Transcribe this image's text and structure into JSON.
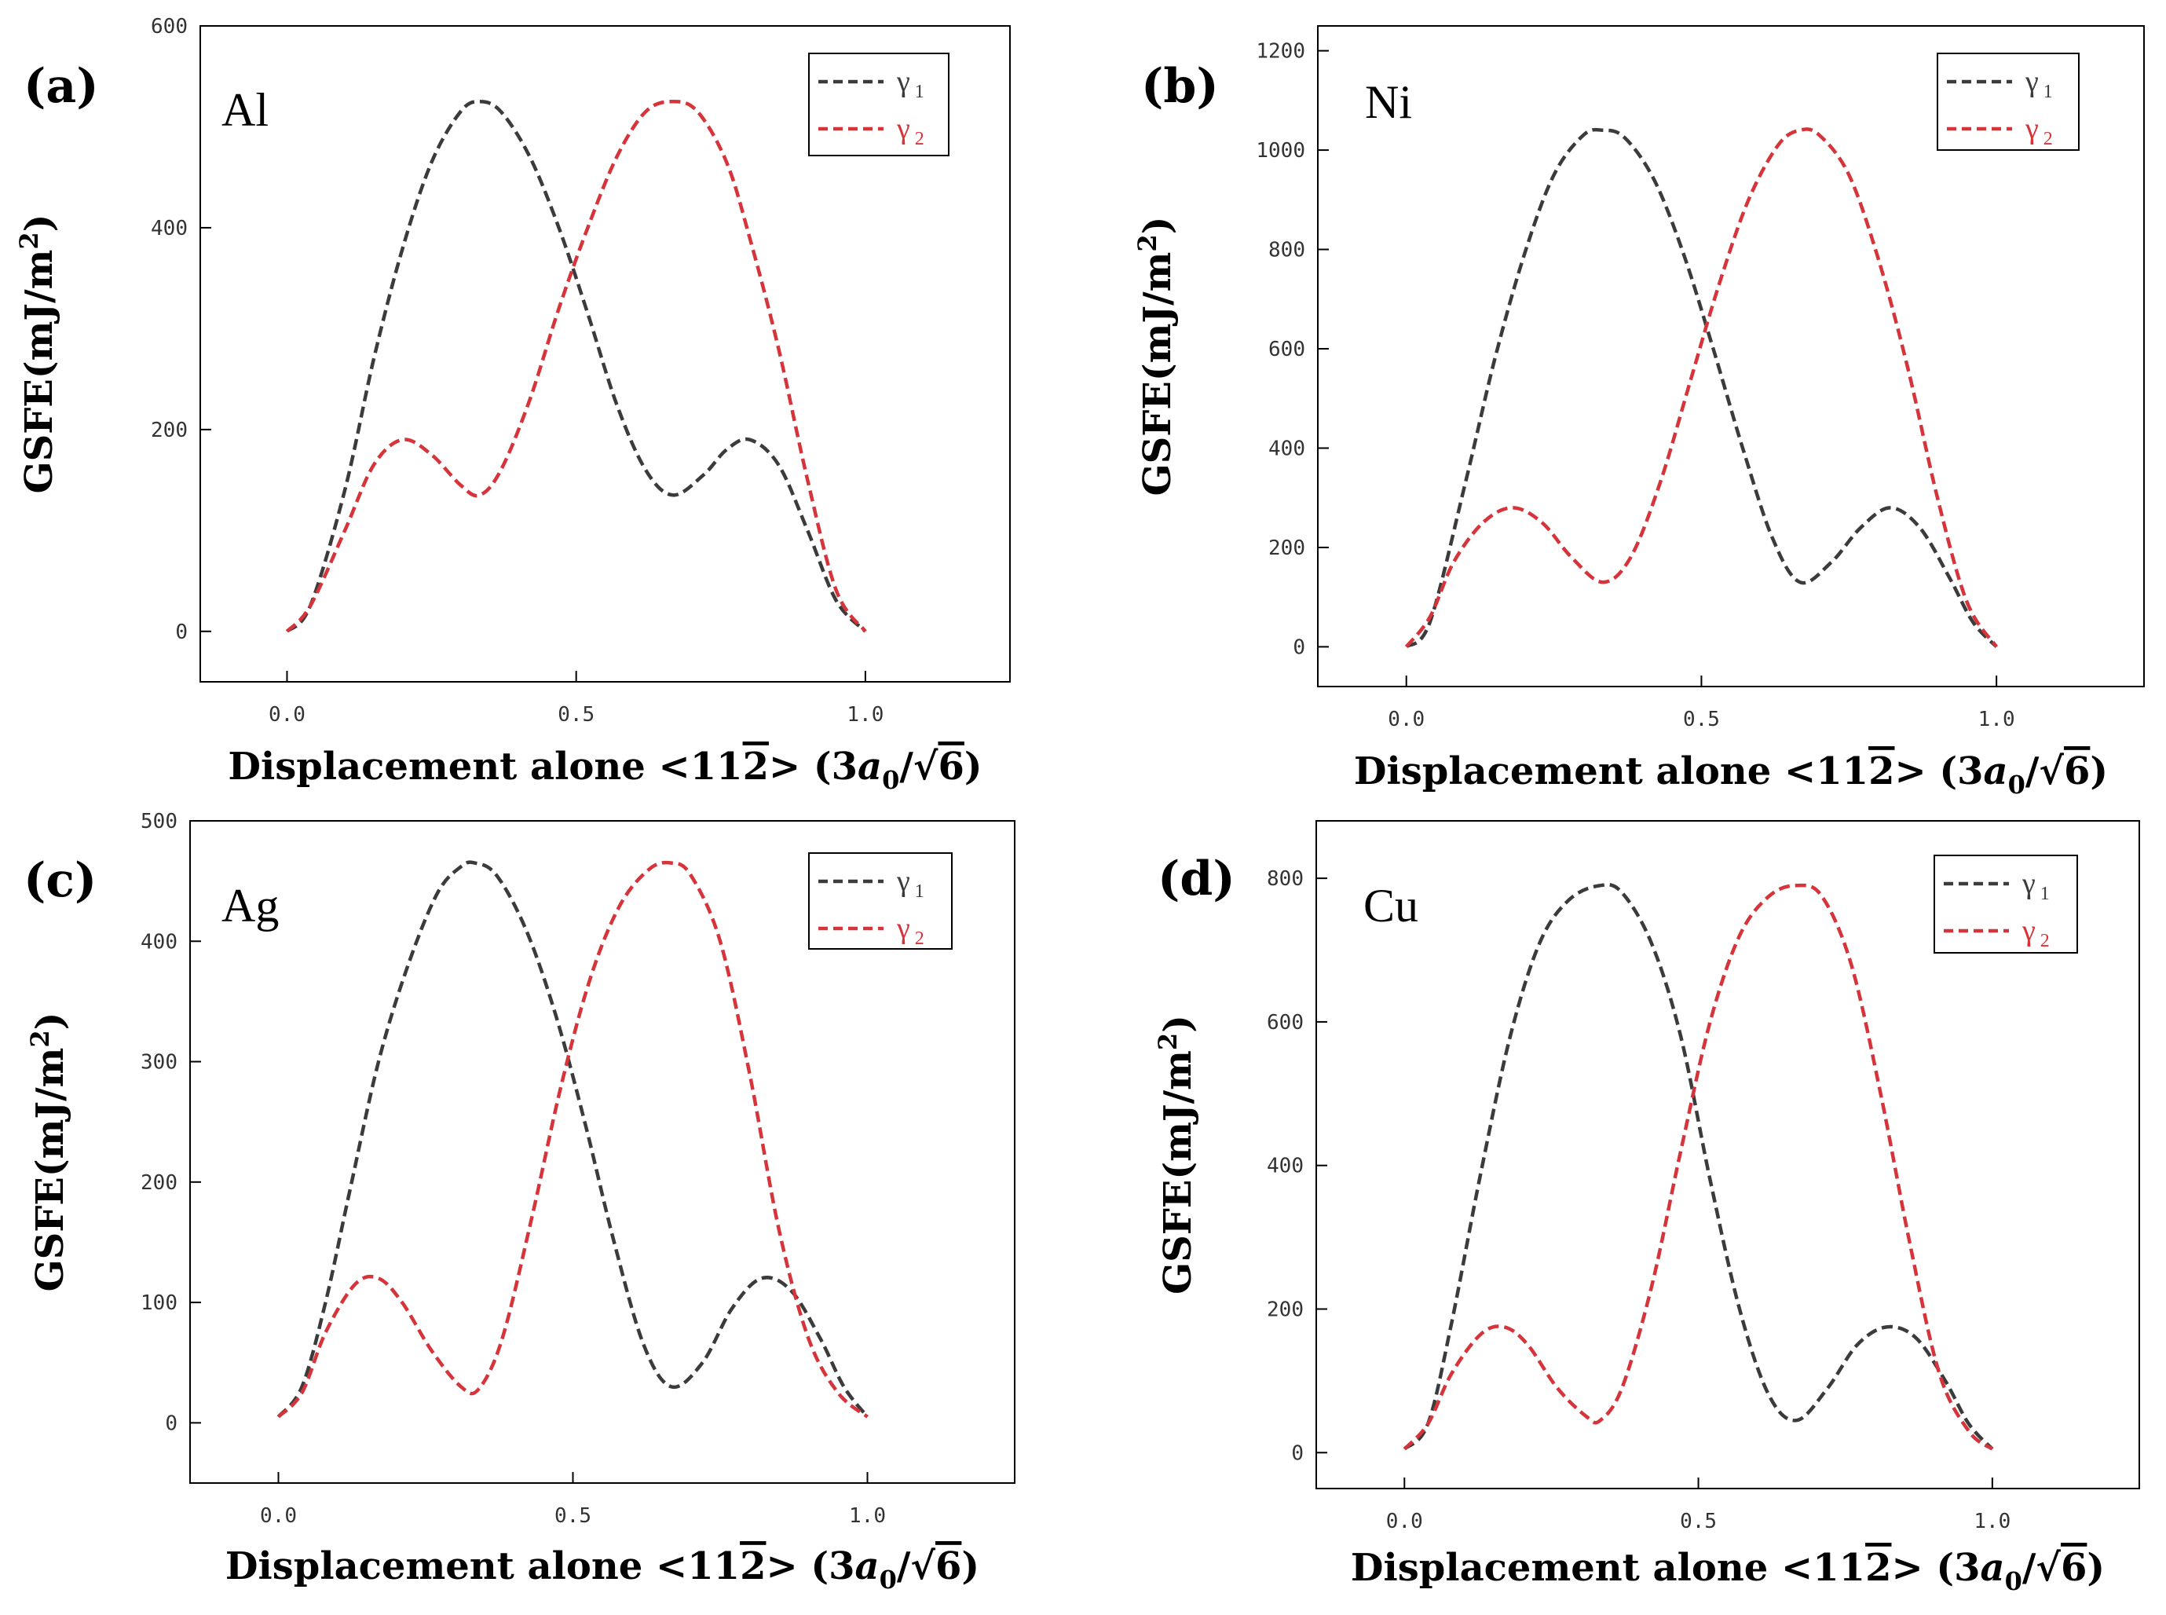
{
  "colors": {
    "gamma1": "#3b3b3b",
    "gamma2": "#d6343b"
  },
  "chart_data": [
    {
      "type": "line",
      "panel_label": "(a)",
      "element": "Al",
      "title": "",
      "xlabel": "Displacement alone <11̅2> (3a₀/√6)",
      "xlabel_parts": [
        "Displacement alone <11",
        "2",
        "> (3",
        "a",
        "0",
        "/√",
        "6",
        ")"
      ],
      "ylabel": "GSFE(mJ/m²)",
      "ylabel_parts": [
        "GSFE(mJ/m",
        "2",
        ")"
      ],
      "xlim": [
        -0.15,
        1.25
      ],
      "ylim": [
        -50,
        600
      ],
      "xticks": [
        0.0,
        0.5,
        1.0
      ],
      "xtick_labels": [
        "0.0",
        "0.5",
        "1.0"
      ],
      "yticks": [
        0,
        200,
        400,
        600
      ],
      "ytick_labels": [
        "0",
        "200",
        "400",
        "600"
      ],
      "legend_position": "top-right",
      "grid": false,
      "series": [
        {
          "name": "γ 1",
          "symbol": "γ",
          "subscript": "1",
          "color_key": "gamma1",
          "x": [
            0,
            0.04,
            0.1,
            0.15,
            0.2,
            0.25,
            0.3,
            0.333,
            0.37,
            0.42,
            0.47,
            0.52,
            0.57,
            0.62,
            0.667,
            0.72,
            0.76,
            0.8,
            0.85,
            0.9,
            0.95,
            1.0
          ],
          "values": [
            0,
            25,
            140,
            270,
            380,
            465,
            515,
            525,
            515,
            470,
            400,
            315,
            225,
            160,
            135,
            155,
            180,
            190,
            165,
            100,
            30,
            0
          ]
        },
        {
          "name": "γ 2",
          "symbol": "γ",
          "subscript": "2",
          "color_key": "gamma2",
          "x": [
            0,
            0.04,
            0.1,
            0.15,
            0.2,
            0.25,
            0.3,
            0.333,
            0.37,
            0.42,
            0.47,
            0.52,
            0.57,
            0.62,
            0.667,
            0.71,
            0.76,
            0.8,
            0.85,
            0.9,
            0.95,
            1.0
          ],
          "values": [
            0,
            25,
            100,
            165,
            190,
            175,
            145,
            135,
            160,
            230,
            320,
            400,
            470,
            515,
            525,
            515,
            465,
            390,
            280,
            150,
            40,
            0
          ]
        }
      ]
    },
    {
      "type": "line",
      "panel_label": "(b)",
      "element": "Ni",
      "title": "",
      "xlabel": "Displacement alone <11̅2> (3a₀/√6)",
      "xlabel_parts": [
        "Displacement alone <11",
        "2",
        "> (3",
        "a",
        "0",
        "/√",
        "6",
        ")"
      ],
      "ylabel": "GSFE(mJ/m²)",
      "ylabel_parts": [
        "GSFE(mJ/m",
        "2",
        ")"
      ],
      "xlim": [
        -0.15,
        1.25
      ],
      "ylim": [
        -80,
        1250
      ],
      "xticks": [
        0.0,
        0.5,
        1.0
      ],
      "xtick_labels": [
        "0.0",
        "0.5",
        "1.0"
      ],
      "yticks": [
        0,
        200,
        400,
        600,
        800,
        1000,
        1200
      ],
      "ytick_labels": [
        "0",
        "200",
        "400",
        "600",
        "800",
        "1000",
        "1200"
      ],
      "legend_position": "top-right",
      "grid": false,
      "series": [
        {
          "name": "γ 1",
          "symbol": "γ",
          "subscript": "1",
          "color_key": "gamma1",
          "x": [
            0,
            0.04,
            0.1,
            0.15,
            0.2,
            0.25,
            0.3,
            0.333,
            0.37,
            0.42,
            0.47,
            0.52,
            0.57,
            0.62,
            0.667,
            0.72,
            0.77,
            0.82,
            0.87,
            0.92,
            0.96,
            1.0
          ],
          "values": [
            0,
            50,
            330,
            580,
            790,
            950,
            1030,
            1040,
            1025,
            940,
            790,
            600,
            400,
            220,
            130,
            170,
            240,
            280,
            240,
            140,
            50,
            0
          ]
        },
        {
          "name": "γ 2",
          "symbol": "γ",
          "subscript": "2",
          "color_key": "gamma2",
          "x": [
            0,
            0.04,
            0.08,
            0.13,
            0.18,
            0.23,
            0.28,
            0.333,
            0.38,
            0.43,
            0.48,
            0.53,
            0.58,
            0.63,
            0.667,
            0.7,
            0.75,
            0.8,
            0.85,
            0.9,
            0.95,
            1.0
          ],
          "values": [
            0,
            60,
            170,
            250,
            280,
            250,
            180,
            130,
            180,
            330,
            530,
            730,
            900,
            1010,
            1040,
            1030,
            950,
            780,
            560,
            300,
            90,
            0
          ]
        }
      ]
    },
    {
      "type": "line",
      "panel_label": "(c)",
      "element": "Ag",
      "title": "",
      "xlabel": "Displacement alone <11̅2> (3a₀/√6)",
      "xlabel_parts": [
        "Displacement alone <11",
        "2",
        "> (3",
        "a",
        "0",
        "/√",
        "6",
        ")"
      ],
      "ylabel": "GSFE(mJ/m²)",
      "ylabel_parts": [
        "GSFE(mJ/m",
        "2",
        ")"
      ],
      "xlim": [
        -0.15,
        1.25
      ],
      "ylim": [
        -50,
        500
      ],
      "xticks": [
        0.0,
        0.5,
        1.0
      ],
      "xtick_labels": [
        "0.0",
        "0.5",
        "1.0"
      ],
      "yticks": [
        0,
        100,
        200,
        300,
        400,
        500
      ],
      "ytick_labels": [
        "0",
        "100",
        "200",
        "300",
        "400",
        "500"
      ],
      "legend_position": "top-right",
      "grid": false,
      "series": [
        {
          "name": "γ 1",
          "symbol": "γ",
          "subscript": "1",
          "color_key": "gamma1",
          "x": [
            0,
            0.04,
            0.08,
            0.12,
            0.17,
            0.22,
            0.27,
            0.31,
            0.333,
            0.37,
            0.42,
            0.47,
            0.52,
            0.57,
            0.62,
            0.667,
            0.72,
            0.77,
            0.82,
            0.87,
            0.92,
            0.96,
            1.0
          ],
          "values": [
            5,
            30,
            100,
            190,
            300,
            380,
            440,
            462,
            465,
            455,
            410,
            340,
            250,
            150,
            65,
            30,
            50,
            95,
            120,
            110,
            70,
            30,
            5
          ]
        },
        {
          "name": "γ 2",
          "symbol": "γ",
          "subscript": "2",
          "color_key": "gamma2",
          "x": [
            0,
            0.04,
            0.08,
            0.13,
            0.17,
            0.21,
            0.26,
            0.31,
            0.34,
            0.38,
            0.43,
            0.48,
            0.53,
            0.58,
            0.63,
            0.667,
            0.7,
            0.75,
            0.8,
            0.85,
            0.9,
            0.95,
            1.0
          ],
          "values": [
            5,
            25,
            75,
            115,
            120,
            100,
            60,
            30,
            28,
            70,
            170,
            280,
            370,
            430,
            460,
            465,
            455,
            400,
            290,
            160,
            70,
            25,
            5
          ]
        }
      ]
    },
    {
      "type": "line",
      "panel_label": "(d)",
      "element": "Cu",
      "title": "",
      "xlabel": "Displacement alone <11̅2> (3a₀/√6)",
      "xlabel_parts": [
        "Displacement alone <11",
        "2",
        "> (3",
        "a",
        "0",
        "/√",
        "6",
        ")"
      ],
      "ylabel": "GSFE(mJ/m²)",
      "ylabel_parts": [
        "GSFE(mJ/m",
        "2",
        ")"
      ],
      "xlim": [
        -0.15,
        1.25
      ],
      "ylim": [
        -50,
        880
      ],
      "xticks": [
        0.0,
        0.5,
        1.0
      ],
      "xtick_labels": [
        "0.0",
        "0.5",
        "1.0"
      ],
      "yticks": [
        0,
        200,
        400,
        600,
        800
      ],
      "ytick_labels": [
        "0",
        "200",
        "400",
        "600",
        "800"
      ],
      "legend_position": "top-right",
      "grid": false,
      "series": [
        {
          "name": "γ 1",
          "symbol": "γ",
          "subscript": "1",
          "color_key": "gamma1",
          "x": [
            0,
            0.04,
            0.08,
            0.13,
            0.18,
            0.23,
            0.28,
            0.333,
            0.37,
            0.42,
            0.47,
            0.52,
            0.57,
            0.62,
            0.667,
            0.72,
            0.77,
            0.82,
            0.87,
            0.92,
            0.96,
            1.0
          ],
          "values": [
            5,
            40,
            180,
            390,
            580,
            710,
            770,
            790,
            780,
            710,
            580,
            380,
            200,
            80,
            45,
            90,
            150,
            175,
            160,
            100,
            40,
            5
          ]
        },
        {
          "name": "γ 2",
          "symbol": "γ",
          "subscript": "2",
          "color_key": "gamma2",
          "x": [
            0,
            0.04,
            0.08,
            0.13,
            0.17,
            0.21,
            0.26,
            0.31,
            0.333,
            0.37,
            0.42,
            0.47,
            0.52,
            0.57,
            0.62,
            0.667,
            0.71,
            0.76,
            0.81,
            0.86,
            0.91,
            0.96,
            1.0
          ],
          "values": [
            5,
            40,
            110,
            165,
            175,
            150,
            90,
            50,
            45,
            90,
            230,
            420,
            600,
            720,
            775,
            790,
            775,
            680,
            500,
            290,
            110,
            30,
            5
          ]
        }
      ]
    }
  ]
}
